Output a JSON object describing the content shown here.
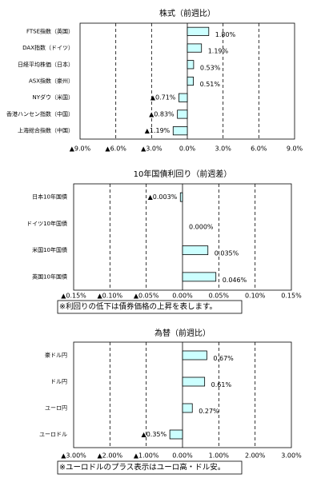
{
  "chart_data": [
    {
      "type": "bar",
      "orientation": "horizontal",
      "title": "株式（前週比）",
      "categories": [
        "FTSE指数（英国）",
        "DAX指数（ドイツ）",
        "日経平均株価（日本）",
        "ASX指数（豪州）",
        "NYダウ（米国）",
        "香港ハンセン指数（中国）",
        "上海総合指数（中国）"
      ],
      "values": [
        1.8,
        1.19,
        0.53,
        0.51,
        -0.71,
        -0.83,
        -1.19
      ],
      "value_labels": [
        "1.80%",
        "1.19%",
        "0.53%",
        "0.51%",
        "▲0.71%",
        "▲0.83%",
        "▲1.19%"
      ],
      "color": "#ccffff",
      "negative_label_color": "#ff0000",
      "xlim": [
        -9,
        9
      ],
      "xticks": [
        {
          "value": -9,
          "label": "▲9.0%"
        },
        {
          "value": -6,
          "label": "▲6.0%"
        },
        {
          "value": -3,
          "label": "▲3.0%"
        },
        {
          "value": 0,
          "label": "0.0%"
        },
        {
          "value": 3,
          "label": "3.0%"
        },
        {
          "value": 6,
          "label": "6.0%"
        },
        {
          "value": 9,
          "label": "9.0%"
        }
      ],
      "grid": true
    },
    {
      "type": "bar",
      "orientation": "horizontal",
      "title": "10年国債利回り（前週差）",
      "categories": [
        "日本10年国債",
        "ドイツ10年国債",
        "米国10年国債",
        "英国10年国債"
      ],
      "values": [
        -0.003,
        0.0,
        0.035,
        0.046
      ],
      "value_labels": [
        "▲0.003%",
        "0.000%",
        "0.035%",
        "0.046%"
      ],
      "color": "#ccffff",
      "negative_label_color": "#ff0000",
      "xlim": [
        -0.15,
        0.15
      ],
      "xticks": [
        {
          "value": -0.15,
          "label": "▲0.15%"
        },
        {
          "value": -0.1,
          "label": "▲0.10%"
        },
        {
          "value": -0.05,
          "label": "▲0.05%"
        },
        {
          "value": 0,
          "label": "0.00%"
        },
        {
          "value": 0.05,
          "label": "0.05%"
        },
        {
          "value": 0.1,
          "label": "0.10%"
        },
        {
          "value": 0.15,
          "label": "0.15%"
        }
      ],
      "grid": true,
      "note": "※利回りの低下は債券価格の上昇を表します。"
    },
    {
      "type": "bar",
      "orientation": "horizontal",
      "title": "為替（前週比）",
      "categories": [
        "豪ドル円",
        "ドル円",
        "ユーロ円",
        "ユーロドル"
      ],
      "values": [
        0.67,
        0.61,
        0.27,
        -0.35
      ],
      "value_labels": [
        "0.67%",
        "0.61%",
        "0.27%",
        "▲0.35%"
      ],
      "color": "#ccffff",
      "negative_label_color": "#ff0000",
      "xlim": [
        -3,
        3
      ],
      "xticks": [
        {
          "value": -3,
          "label": "▲3.00%"
        },
        {
          "value": -2,
          "label": "▲2.00%"
        },
        {
          "value": -1,
          "label": "▲1.00%"
        },
        {
          "value": 0,
          "label": "0.00%"
        },
        {
          "value": 1,
          "label": "1.00%"
        },
        {
          "value": 2,
          "label": "2.00%"
        },
        {
          "value": 3,
          "label": "3.00%"
        }
      ],
      "grid": true,
      "note": "※ユーロドルのプラス表示はユーロ高・ドル安。"
    }
  ]
}
